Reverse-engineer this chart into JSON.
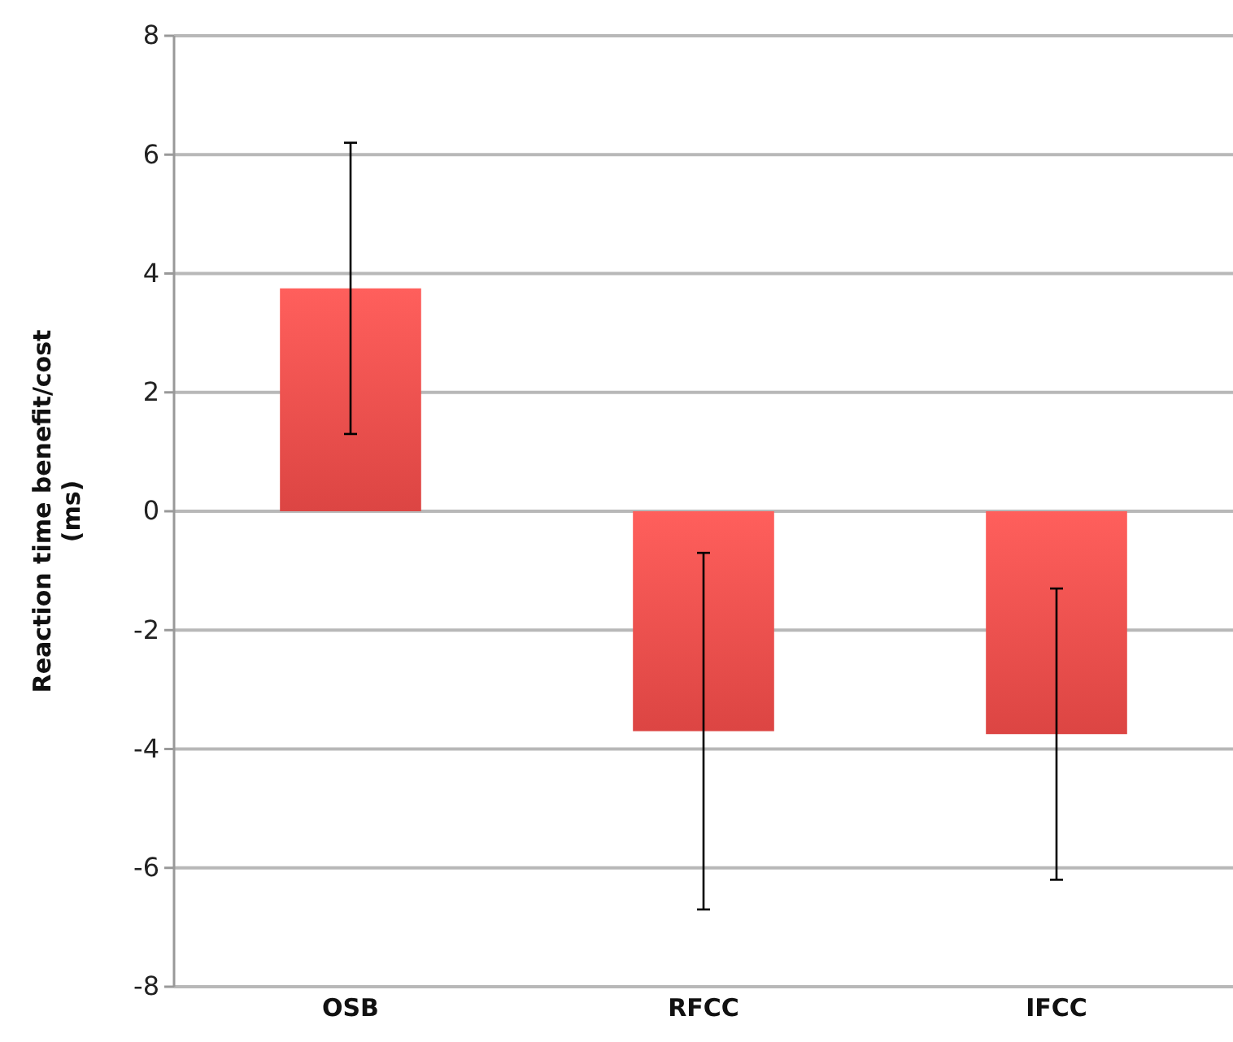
{
  "chart_data": {
    "type": "bar",
    "ylabel": "Reaction time benefit/cost (ms)",
    "categories": [
      "OSB",
      "RFCC",
      "IFCC"
    ],
    "values": [
      3.75,
      -3.7,
      -3.75
    ],
    "errors": [
      2.45,
      3.0,
      2.45
    ],
    "color": "#dc4543",
    "ylim": [
      -8,
      8
    ],
    "yticks": [
      -8,
      -6,
      -4,
      -2,
      0,
      2,
      4,
      6,
      8
    ],
    "grid": "y"
  }
}
